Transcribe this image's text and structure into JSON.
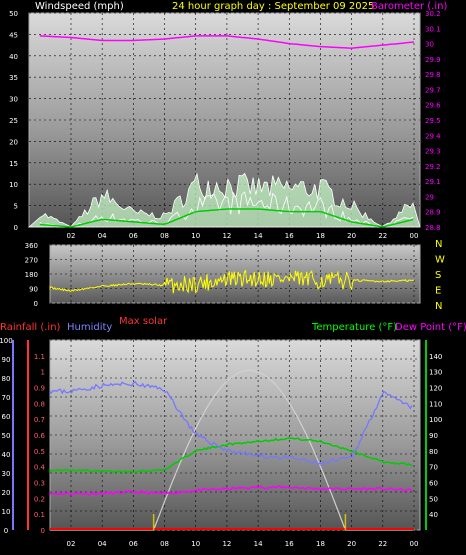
{
  "title": "24 hour graph day : September 09 2025",
  "colors": {
    "wind": "#ffffff",
    "gust_fill": "#e0e0e0",
    "avg_wind": "#00cc00",
    "barometer": "#ff00ff",
    "direction": "#ffff00",
    "rain": "#ff0000",
    "humidity": "#7777ff",
    "temperature": "#00cc00",
    "dew_point": "#ff00ff",
    "solar": "#d0d0d0",
    "time_axis": "#ffffff"
  },
  "x_ticks": [
    "02",
    "04",
    "06",
    "08",
    "10",
    "12",
    "14",
    "16",
    "18",
    "20",
    "22",
    "00"
  ],
  "chart_data": [
    {
      "type": "line",
      "panel": "wind and barometer",
      "left_axis_label": "Windspeed (mph)",
      "right_axis_label": "Barometer (.in)",
      "left_ylim": [
        0,
        50
      ],
      "left_ticks": [
        "0",
        "5",
        "10",
        "15",
        "20",
        "25",
        "30",
        "35",
        "40",
        "45",
        "50"
      ],
      "right_ylim": [
        28.8,
        30.2
      ],
      "right_ticks": [
        "28.8",
        "28.9",
        "29",
        "29.1",
        "29.2",
        "29.3",
        "29.4",
        "29.5",
        "29.6",
        "29.7",
        "29.8",
        "29.9",
        "30",
        "30.1",
        "30.2"
      ],
      "x": [
        "00",
        "02",
        "04",
        "06",
        "08",
        "10",
        "12",
        "14",
        "16",
        "18",
        "20",
        "22",
        "00"
      ],
      "series": [
        {
          "name": "Barometer (.in)",
          "values": [
            30.05,
            30.04,
            30.02,
            30.02,
            30.03,
            30.05,
            30.05,
            30.03,
            30.0,
            29.98,
            29.97,
            29.99,
            30.01
          ]
        },
        {
          "name": "Windspeed (mph)",
          "values": [
            1,
            0,
            3,
            2,
            1,
            6,
            7,
            7,
            6,
            6,
            2,
            0,
            3
          ]
        },
        {
          "name": "Gust",
          "values": [
            4,
            0,
            9,
            4,
            3,
            12,
            12,
            11,
            11,
            11,
            6,
            0,
            7
          ]
        }
      ]
    },
    {
      "type": "line",
      "panel": "wind direction",
      "ylim": [
        0,
        360
      ],
      "left_ticks": [
        "0",
        "90",
        "180",
        "270",
        "360"
      ],
      "right_labels": [
        "N",
        "W",
        "S",
        "E",
        "N"
      ],
      "x": [
        "00",
        "02",
        "04",
        "06",
        "08",
        "10",
        "12",
        "14",
        "16",
        "18",
        "20",
        "22",
        "00"
      ],
      "series": [
        {
          "name": "Direction",
          "values": [
            105,
            75,
            105,
            120,
            110,
            120,
            145,
            155,
            150,
            140,
            140,
            135,
            140
          ]
        }
      ]
    },
    {
      "type": "line",
      "panel": "rain, humidity, temperature",
      "labels": {
        "rainfall": "Rainfall (.in)",
        "humidity": "Humidity",
        "max_solar": "Max solar",
        "temperature": "Temperature (°F)",
        "dew_point": "Dew Point (°F)"
      },
      "rain_ylim": [
        0,
        1.2
      ],
      "rain_ticks": [
        "0",
        "0.1",
        "0.2",
        "0.3",
        "0.4",
        "0.5",
        "0.6",
        "0.7",
        "0.8",
        "0.9",
        "1",
        "1.1"
      ],
      "humidity_ylim": [
        0,
        100
      ],
      "humidity_ticks": [
        "0",
        "10",
        "20",
        "30",
        "40",
        "50",
        "60",
        "70",
        "80",
        "90",
        "100"
      ],
      "temp_ylim": [
        30,
        150
      ],
      "temp_ticks": [
        "40",
        "50",
        "60",
        "70",
        "80",
        "90",
        "100",
        "110",
        "120",
        "130",
        "140"
      ],
      "x": [
        "00",
        "02",
        "04",
        "06",
        "08",
        "10",
        "12",
        "14",
        "16",
        "18",
        "20",
        "22",
        "00"
      ],
      "series": [
        {
          "name": "Humidity",
          "values": [
            73,
            73,
            76,
            77,
            74,
            50,
            42,
            39,
            38,
            35,
            38,
            72,
            64
          ]
        },
        {
          "name": "Temperature (°F)",
          "values": [
            67,
            68,
            67,
            67,
            68,
            80,
            84,
            86,
            88,
            86,
            80,
            73,
            71
          ]
        },
        {
          "name": "Dew Point (°F)",
          "values": [
            53,
            53,
            53,
            54,
            53,
            55,
            56,
            57,
            57,
            56,
            56,
            56,
            55
          ]
        },
        {
          "name": "Max solar",
          "values": [
            0,
            0,
            0,
            0,
            6,
            44,
            72,
            84,
            72,
            38,
            0,
            0,
            0
          ]
        },
        {
          "name": "Rainfall (.in)",
          "values": [
            0,
            0,
            0,
            0,
            0,
            0,
            0,
            0,
            0,
            0,
            0,
            0,
            0
          ]
        }
      ]
    }
  ]
}
